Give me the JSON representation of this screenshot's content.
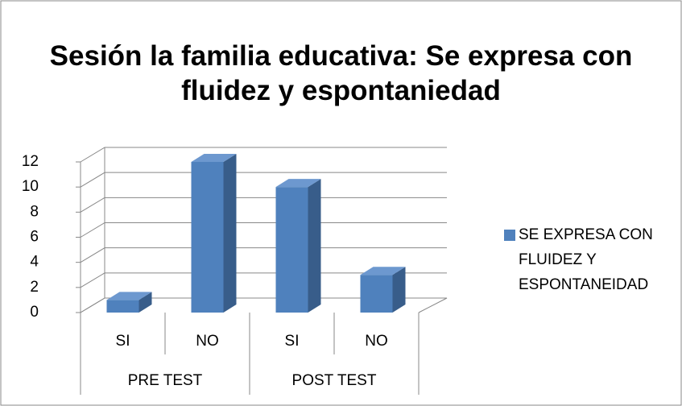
{
  "chart_data": {
    "type": "bar3d",
    "title": "Sesión la familia educativa: Se expresa con fluidez y espontaniedad",
    "categories": [
      "SI",
      "NO",
      "SI",
      "NO"
    ],
    "groups": [
      "PRE TEST",
      "POST TEST"
    ],
    "series": [
      {
        "name": "SE EXPRESA CON FLUIDEZ Y ESPONTANEIDAD",
        "color": "#4f81bd",
        "values": [
          1,
          12,
          10,
          3
        ]
      }
    ],
    "ylim": [
      0,
      12
    ],
    "yticks": [
      0,
      2,
      4,
      6,
      8,
      10,
      12
    ],
    "grid": true,
    "legend": "right"
  }
}
